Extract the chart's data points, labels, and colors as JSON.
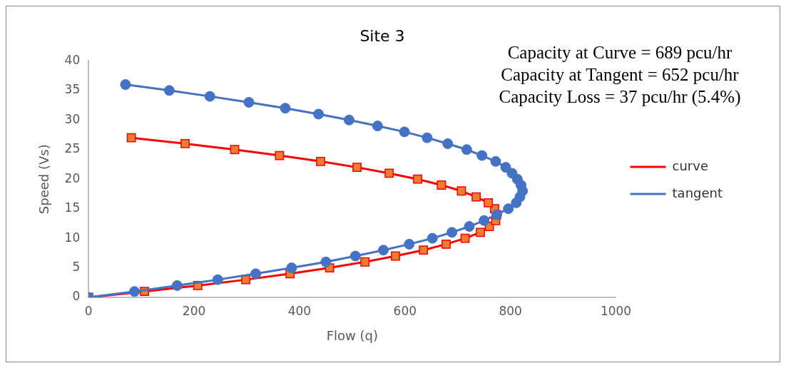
{
  "chart_data": {
    "type": "line",
    "title": "Site 3",
    "xlabel": "Flow (q)",
    "ylabel": "Speed (Vs)",
    "annotations": [
      "Capacity at Curve = 689 pcu/hr",
      "Capacity at Tangent = 652 pcu/hr",
      "Capacity Loss = 37 pcu/hr (5.4%)"
    ],
    "xlim": [
      0,
      1000
    ],
    "xticks": [
      0,
      200,
      400,
      600,
      800,
      1000
    ],
    "ylim": [
      0,
      40
    ],
    "yticks": [
      0,
      5,
      10,
      15,
      20,
      25,
      30,
      35,
      40
    ],
    "grid": false,
    "legend": "right",
    "line_style": "solid",
    "series": [
      {
        "name": "curve",
        "color": "#ff0000",
        "marker": "square",
        "x": [
          0,
          106,
          207,
          298,
          382,
          457,
          524,
          582,
          635,
          678,
          714,
          743,
          760,
          772,
          774,
          770,
          758,
          735,
          707,
          669,
          624,
          570,
          509,
          440,
          362,
          277,
          183,
          81
        ],
        "values": [
          0,
          1,
          2,
          3,
          4,
          5,
          6,
          7,
          8,
          9,
          10,
          11,
          12,
          13,
          14,
          15,
          16,
          17,
          18,
          19,
          20,
          21,
          22,
          23,
          24,
          25,
          26,
          27
        ]
      },
      {
        "name": "tangent",
        "color": "#4472c4",
        "marker": "circle",
        "x": [
          0,
          87,
          168,
          245,
          317,
          385,
          450,
          506,
          559,
          608,
          652,
          689,
          722,
          750,
          774,
          796,
          811,
          818,
          823,
          820,
          813,
          803,
          791,
          772,
          746,
          717,
          681,
          642,
          599,
          548,
          494,
          436,
          373,
          304,
          230,
          153,
          70
        ],
        "values": [
          0,
          1,
          2,
          3,
          4,
          5,
          6,
          7,
          8,
          9,
          10,
          11,
          12,
          13,
          14,
          15,
          16,
          17,
          18,
          19,
          20,
          21,
          22,
          23,
          24,
          25,
          26,
          27,
          28,
          29,
          30,
          31,
          32,
          33,
          34,
          35,
          36
        ]
      }
    ]
  }
}
